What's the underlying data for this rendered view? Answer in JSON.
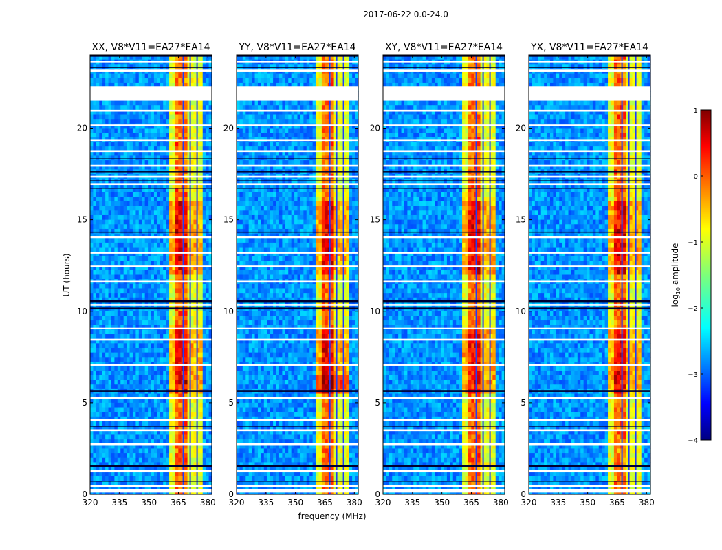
{
  "chart_data": {
    "type": "heatmap",
    "suptitle": "2017-06-22 0.0-24.0",
    "xlabel": "frequency (MHz)",
    "ylabel": "UT (hours)",
    "xlim": [
      320,
      382
    ],
    "ylim": [
      0,
      24
    ],
    "x_ticks": [
      320,
      335,
      350,
      365,
      380
    ],
    "y_ticks": [
      0,
      5,
      10,
      15,
      20
    ],
    "panels": [
      {
        "title": "XX, V8*V11=EA27*EA14"
      },
      {
        "title": "YY, V8*V11=EA27*EA14"
      },
      {
        "title": "XY, V8*V11=EA27*EA14"
      },
      {
        "title": "YX, V8*V11=EA27*EA14"
      }
    ],
    "colorbar": {
      "label": "log10 amplitude",
      "colormap": "jet",
      "range": [
        -4,
        1
      ],
      "ticks": [
        1,
        0,
        -1,
        -2,
        -3,
        -4
      ]
    },
    "bright_band_mhz": [
      360,
      378
    ],
    "band_peak_mhz": [
      364,
      369
    ],
    "flagged_hours": [
      [
        21.5,
        22.3
      ],
      [
        0.1,
        0.3
      ],
      [
        0.4,
        0.5
      ],
      [
        1.2,
        1.35
      ],
      [
        2.65,
        2.8
      ],
      [
        3.45,
        3.55
      ],
      [
        4.0,
        4.1
      ],
      [
        5.2,
        5.3
      ],
      [
        7.05,
        7.1
      ],
      [
        8.4,
        8.5
      ],
      [
        9.05,
        9.1
      ],
      [
        10.3,
        10.4
      ],
      [
        11.6,
        11.7
      ],
      [
        12.4,
        12.5
      ],
      [
        13.15,
        13.25
      ],
      [
        14.0,
        14.1
      ],
      [
        16.9,
        17.0
      ],
      [
        17.3,
        17.4
      ],
      [
        17.9,
        18.0
      ],
      [
        18.7,
        18.8
      ],
      [
        19.3,
        19.4
      ],
      [
        20.1,
        20.2
      ],
      [
        20.9,
        21.0
      ],
      [
        23.1,
        23.2
      ],
      [
        23.6,
        23.7
      ]
    ],
    "dropout_hours": [
      [
        0.7,
        0.75
      ],
      [
        1.5,
        1.6
      ],
      [
        3.7,
        3.75
      ],
      [
        5.6,
        5.7
      ],
      [
        10.1,
        10.2
      ],
      [
        10.5,
        10.6
      ],
      [
        14.3,
        14.35
      ],
      [
        16.7,
        16.75
      ],
      [
        17.1,
        17.15
      ],
      [
        17.6,
        17.65
      ],
      [
        18.3,
        18.35
      ],
      [
        23.3,
        23.35
      ],
      [
        23.9,
        24.0
      ]
    ]
  }
}
